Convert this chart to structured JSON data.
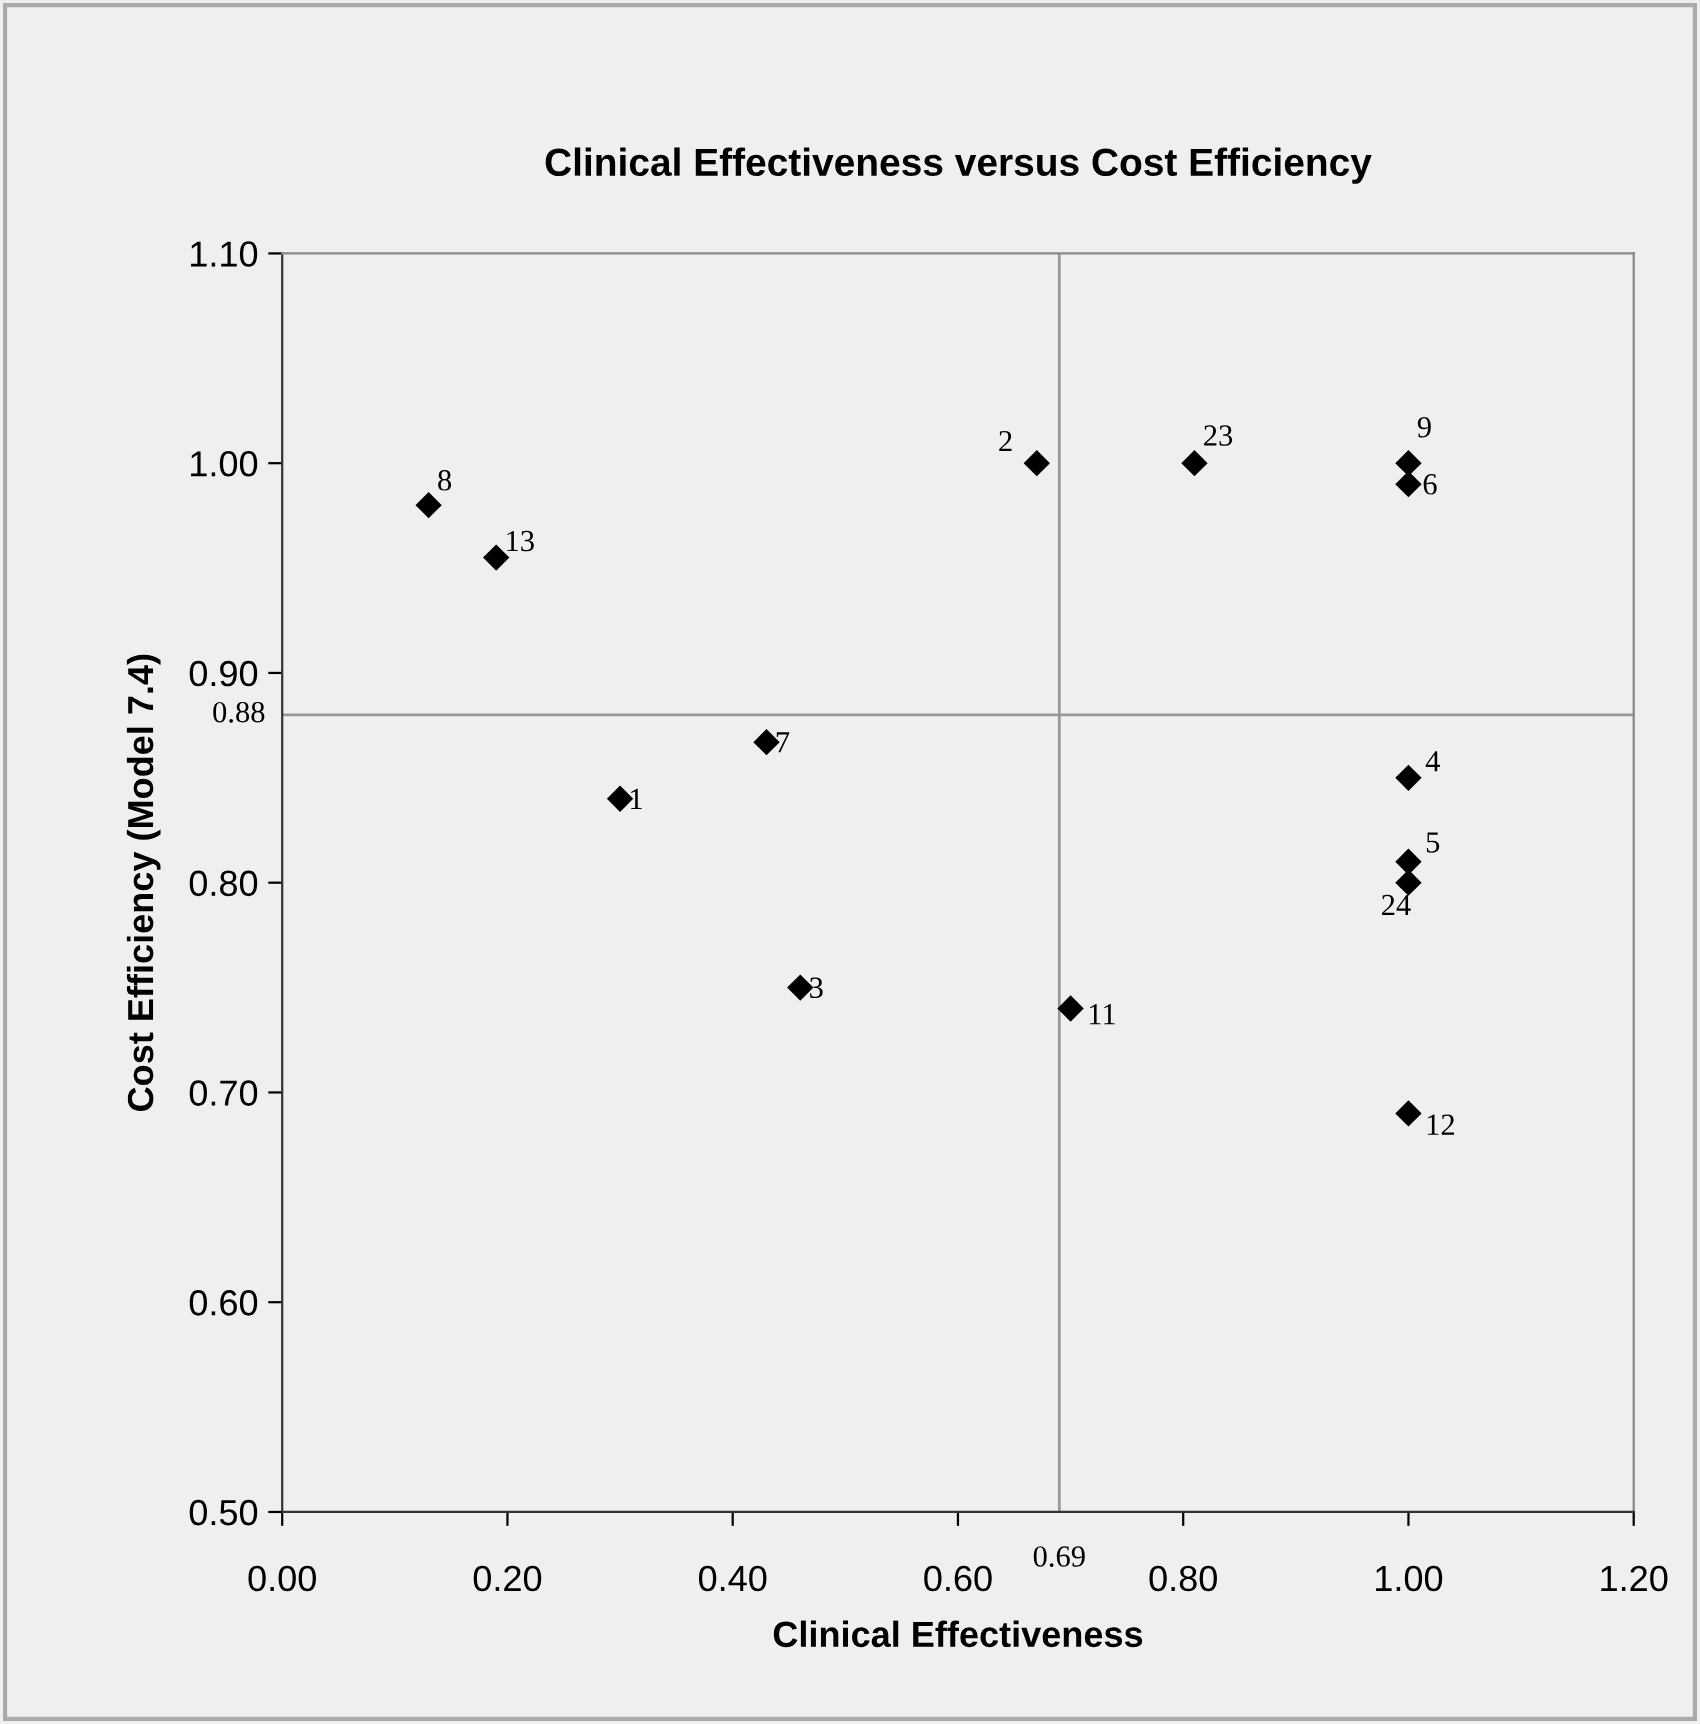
{
  "chart_data": {
    "type": "scatter",
    "title": "Clinical Effectiveness versus Cost Efficiency",
    "xlabel": "Clinical Effectiveness",
    "ylabel": "Cost Efficiency (Model 7.4)",
    "series": [
      {
        "color": "#000000",
        "x": [
          0.13,
          0.19,
          0.3,
          0.43,
          0.46,
          0.67,
          0.81,
          1.0,
          1.0,
          1.0,
          1.0,
          1.0,
          0.7,
          1.0
        ],
        "values": [
          0.98,
          0.955,
          0.84,
          0.867,
          0.75,
          1.0,
          1.0,
          1.0,
          0.99,
          0.85,
          0.81,
          0.8,
          0.74,
          0.69
        ]
      }
    ],
    "annotations": [
      {
        "text": "8",
        "x": 0.13,
        "y": 0.98
      },
      {
        "text": "13",
        "x": 0.19,
        "y": 0.955
      },
      {
        "text": "1",
        "x": 0.3,
        "y": 0.84
      },
      {
        "text": "7",
        "x": 0.43,
        "y": 0.867
      },
      {
        "text": "3",
        "x": 0.46,
        "y": 0.75
      },
      {
        "text": "2",
        "x": 0.67,
        "y": 1.0
      },
      {
        "text": "23",
        "x": 0.81,
        "y": 1.0
      },
      {
        "text": "9",
        "x": 1.0,
        "y": 1.0
      },
      {
        "text": "6",
        "x": 1.0,
        "y": 0.99
      },
      {
        "text": "4",
        "x": 1.0,
        "y": 0.85
      },
      {
        "text": "5",
        "x": 1.0,
        "y": 0.81
      },
      {
        "text": "24",
        "x": 1.0,
        "y": 0.8
      },
      {
        "text": "11",
        "x": 0.7,
        "y": 0.74
      },
      {
        "text": "12",
        "x": 1.0,
        "y": 0.69
      }
    ],
    "marker": "diamond",
    "xlim": [
      0.0,
      1.2
    ],
    "xticks": [
      {
        "value": 0.0,
        "label": "0.00"
      },
      {
        "value": 0.2,
        "label": "0.20"
      },
      {
        "value": 0.4,
        "label": "0.40"
      },
      {
        "value": 0.6,
        "label": "0.60"
      },
      {
        "value": 0.8,
        "label": "0.80"
      },
      {
        "value": 1.0,
        "label": "1.00"
      },
      {
        "value": 1.2,
        "label": "1.20"
      }
    ],
    "ylim": [
      0.5,
      1.1
    ],
    "yticks": [
      {
        "value": 0.5,
        "label": "0.50"
      },
      {
        "value": 0.6,
        "label": "0.60"
      },
      {
        "value": 0.7,
        "label": "0.70"
      },
      {
        "value": 0.8,
        "label": "0.80"
      },
      {
        "value": 0.9,
        "label": "0.90"
      },
      {
        "value": 1.0,
        "label": "1.00"
      },
      {
        "value": 1.1,
        "label": "1.10"
      }
    ],
    "ref_lines": [
      {
        "axis": "x",
        "value": 0.69,
        "label": "0.69",
        "color": "#999999"
      },
      {
        "axis": "y",
        "value": 0.88,
        "label": "0.88",
        "color": "#999999"
      }
    ],
    "grid": false,
    "legend": false
  }
}
